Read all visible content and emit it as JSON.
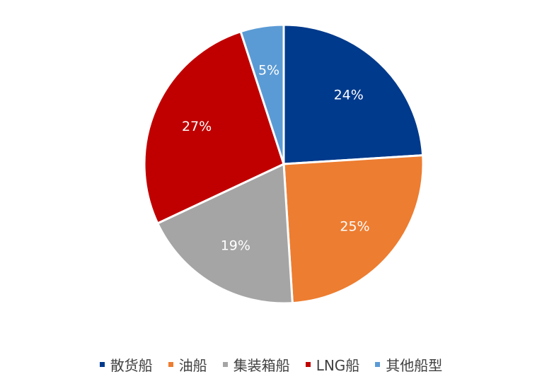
{
  "chart_data": {
    "type": "pie",
    "categories": [
      "散货船",
      "油船",
      "集装箱船",
      "LNG船",
      "其他船型"
    ],
    "values": [
      24,
      25,
      19,
      27,
      5
    ],
    "data_labels": [
      "24%",
      "25%",
      "19%",
      "27%",
      "5%"
    ],
    "colors": [
      "#003A8C",
      "#ED7D31",
      "#A5A5A5",
      "#C00000",
      "#5B9BD5"
    ],
    "start_angle_deg": 0,
    "direction": "clockwise",
    "legend_position": "bottom",
    "title": ""
  }
}
